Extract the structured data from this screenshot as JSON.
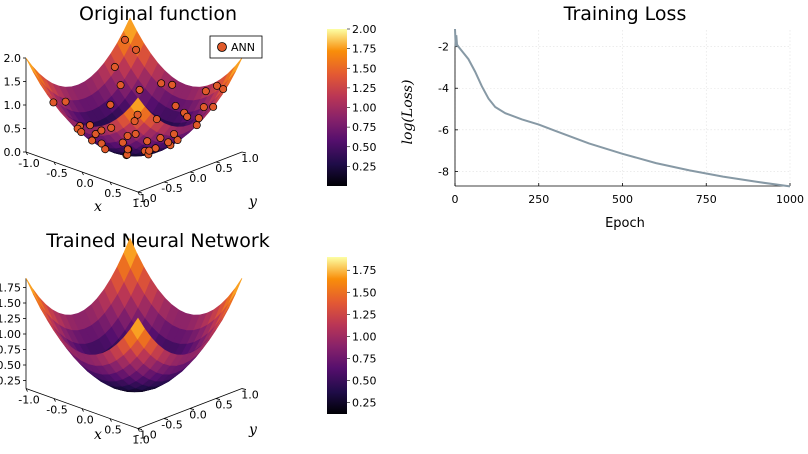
{
  "chart_data": [
    {
      "type": "surface3d",
      "title": "Original function",
      "function": "x^2 + y^2",
      "xlabel": "x",
      "ylabel": "y",
      "xlim": [
        -1.0,
        1.0
      ],
      "ylim": [
        -1.0,
        1.0
      ],
      "zlim": [
        0.0,
        2.0
      ],
      "x_ticks": [
        "-1.0",
        "-0.5",
        "0.0",
        "0.5",
        "1.0"
      ],
      "y_ticks": [
        "-1.0",
        "-0.5",
        "0.0",
        "0.5",
        "1.0"
      ],
      "z_ticks": [
        "0.0",
        "0.5",
        "1.0",
        "1.5",
        "2.0"
      ],
      "legend": {
        "position": "top-right",
        "entries": [
          "ANN"
        ]
      },
      "scatter_series": {
        "name": "ANN",
        "points": [
          [
            -0.95,
            0.85,
            1.62
          ],
          [
            -0.9,
            0.6,
            1.17
          ],
          [
            -0.8,
            0.9,
            1.45
          ],
          [
            -0.7,
            0.3,
            0.58
          ],
          [
            -0.6,
            -0.2,
            0.4
          ],
          [
            -0.55,
            0.7,
            0.79
          ],
          [
            -0.5,
            0.1,
            0.26
          ],
          [
            -0.45,
            -0.6,
            0.56
          ],
          [
            -0.4,
            0.5,
            0.41
          ],
          [
            -0.35,
            0.9,
            0.93
          ],
          [
            -0.3,
            -0.3,
            0.18
          ],
          [
            -0.25,
            0.3,
            0.15
          ],
          [
            -0.2,
            -0.8,
            0.68
          ],
          [
            -0.15,
            0.6,
            0.38
          ],
          [
            -0.1,
            0.0,
            0.01
          ],
          [
            -0.05,
            -0.5,
            0.25
          ],
          [
            0.0,
            0.8,
            0.64
          ],
          [
            0.05,
            -0.2,
            0.04
          ],
          [
            0.1,
            0.4,
            0.17
          ],
          [
            0.15,
            -0.9,
            0.83
          ],
          [
            0.2,
            0.2,
            0.08
          ],
          [
            0.25,
            -0.4,
            0.22
          ],
          [
            0.3,
            0.7,
            0.58
          ],
          [
            0.35,
            -0.1,
            0.14
          ],
          [
            0.4,
            0.95,
            1.06
          ],
          [
            0.45,
            -0.7,
            0.69
          ],
          [
            0.5,
            0.3,
            0.34
          ],
          [
            0.55,
            -0.3,
            0.39
          ],
          [
            0.6,
            0.6,
            0.72
          ],
          [
            0.65,
            0.0,
            0.42
          ],
          [
            0.7,
            -0.5,
            0.74
          ],
          [
            0.75,
            0.4,
            0.72
          ],
          [
            0.8,
            -0.85,
            1.36
          ],
          [
            0.85,
            0.8,
            1.36
          ],
          [
            0.9,
            -0.2,
            0.85
          ],
          [
            0.95,
            0.5,
            1.15
          ],
          [
            -0.85,
            -0.4,
            0.88
          ],
          [
            -0.65,
            -0.85,
            1.14
          ],
          [
            -0.2,
            0.95,
            0.94
          ],
          [
            0.3,
            -0.95,
            0.99
          ],
          [
            0.6,
            0.95,
            1.26
          ],
          [
            -0.75,
            0.55,
            0.87
          ],
          [
            0.1,
            0.1,
            0.02
          ],
          [
            -0.3,
            0.2,
            0.13
          ],
          [
            0.4,
            -0.55,
            0.46
          ],
          [
            -0.55,
            -0.45,
            0.51
          ],
          [
            0.2,
            0.75,
            0.6
          ],
          [
            0.75,
            -0.15,
            0.59
          ],
          [
            -0.1,
            -0.7,
            0.5
          ],
          [
            0.55,
            0.75,
            0.87
          ]
        ]
      },
      "colorbar": {
        "min": 0.0,
        "max": 2.0,
        "ticks": [
          "0.25",
          "0.50",
          "0.75",
          "1.00",
          "1.25",
          "1.50",
          "1.75",
          "2.00"
        ]
      }
    },
    {
      "type": "line",
      "title": "Training Loss",
      "xlabel": "Epoch",
      "ylabel": "log(Loss)",
      "xlim": [
        0,
        1000
      ],
      "ylim": [
        -8.7,
        -1.2
      ],
      "x_ticks": [
        "0",
        "250",
        "500",
        "750",
        "1000"
      ],
      "y_ticks": [
        "-2",
        "-4",
        "-6",
        "-8"
      ],
      "grid": true,
      "series": [
        {
          "x": [
            0,
            2,
            4,
            6,
            10,
            20,
            40,
            60,
            80,
            100,
            120,
            150,
            200,
            250,
            300,
            400,
            500,
            600,
            700,
            800,
            900,
            1000
          ],
          "y": [
            -1.15,
            -2.0,
            -1.45,
            -1.9,
            -2.0,
            -2.2,
            -2.6,
            -3.2,
            -3.9,
            -4.5,
            -4.9,
            -5.2,
            -5.5,
            -5.75,
            -6.05,
            -6.65,
            -7.15,
            -7.6,
            -7.95,
            -8.25,
            -8.5,
            -8.72
          ]
        }
      ]
    },
    {
      "type": "surface3d",
      "title": "Trained Neural Network",
      "xlabel": "x",
      "ylabel": "y",
      "xlim": [
        -1.0,
        1.0
      ],
      "ylim": [
        -1.0,
        1.0
      ],
      "zlim": [
        0.0,
        1.9
      ],
      "x_ticks": [
        "-1.0",
        "-0.5",
        "0.0",
        "0.5",
        "1.0"
      ],
      "y_ticks": [
        "-1.0",
        "-0.5",
        "0.0",
        "0.5",
        "1.0"
      ],
      "z_ticks": [
        "0.25",
        "0.50",
        "0.75",
        "1.00",
        "1.25",
        "1.50",
        "1.75"
      ],
      "colorbar": {
        "min": 0.12,
        "max": 1.9,
        "ticks": [
          "0.25",
          "0.50",
          "0.75",
          "1.00",
          "1.25",
          "1.50",
          "1.75"
        ]
      }
    }
  ]
}
